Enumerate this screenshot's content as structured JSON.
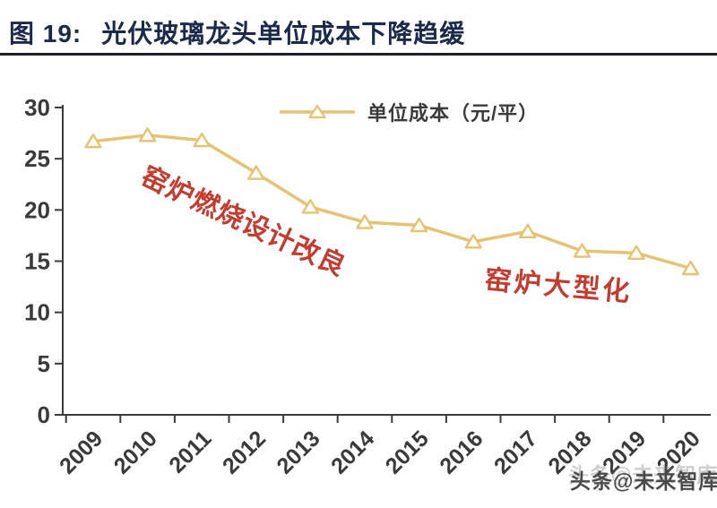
{
  "header": {
    "figure_label": "图 19:",
    "title": "光伏玻璃龙头单位成本下降趋缓"
  },
  "chart_data": {
    "type": "line",
    "title": "光伏玻璃龙头单位成本下降趋缓",
    "categories": [
      "2009",
      "2010",
      "2011",
      "2012",
      "2013",
      "2014",
      "2015",
      "2016",
      "2017",
      "2018",
      "2019",
      "2020"
    ],
    "series": [
      {
        "name": "单位成本（元/平）",
        "values": [
          26.7,
          27.3,
          26.8,
          23.6,
          20.3,
          18.8,
          18.5,
          16.9,
          17.9,
          16.0,
          15.8,
          14.3
        ]
      }
    ],
    "xlabel": "",
    "ylabel": "",
    "ylim": [
      0,
      30
    ],
    "ytick_step": 5,
    "grid": false,
    "legend_position": "top-center",
    "line_color": "#E5C374",
    "marker": "triangle-up-white-fill",
    "annotations": [
      {
        "text": "窑炉燃烧设计改良",
        "color": "#C23C30"
      },
      {
        "text": "窑炉大型化",
        "color": "#C23C30"
      }
    ]
  },
  "watermark": {
    "text": "头条@未来智库"
  },
  "colors": {
    "title_navy": "#1B2A4B",
    "divider": "#1E1E28",
    "axis_gray": "#3C3C3C",
    "line_gold": "#E5C374",
    "annotation_red": "#C23C30",
    "watermark_gray": "#4A4A4A"
  }
}
